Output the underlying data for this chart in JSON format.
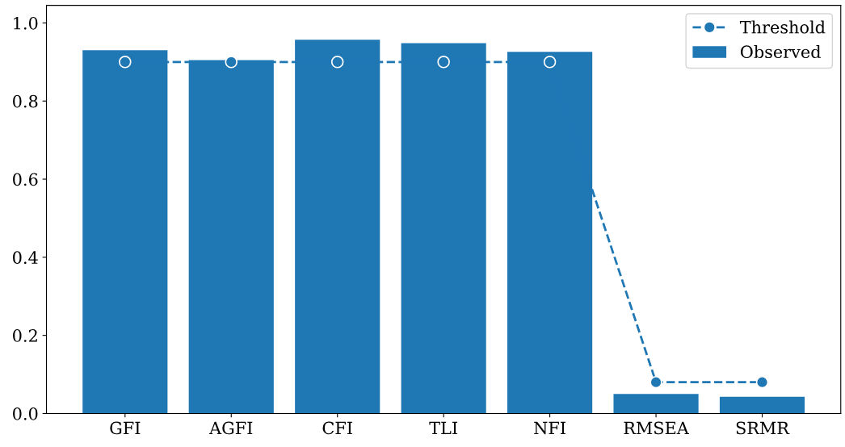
{
  "chart_data": {
    "type": "bar",
    "categories": [
      "GFI",
      "AGFI",
      "CFI",
      "TLI",
      "NFI",
      "RMSEA",
      "SRMR"
    ],
    "series": [
      {
        "name": "Observed",
        "color": "#1f77b4",
        "values": [
          0.93,
          0.905,
          0.957,
          0.948,
          0.926,
          0.05,
          0.043
        ]
      },
      {
        "name": "Threshold",
        "type": "line",
        "color": "#1f77b4",
        "marker": "circle",
        "line_style": "dashed",
        "values": [
          0.9,
          0.9,
          0.9,
          0.9,
          0.9,
          0.08,
          0.08
        ]
      }
    ],
    "ylim": [
      0,
      1.045
    ],
    "yticks": [
      {
        "value": 0,
        "label": "0.0"
      },
      {
        "value": 0.2,
        "label": "0.2"
      },
      {
        "value": 0.4,
        "label": "0.4"
      },
      {
        "value": 0.6,
        "label": "0.6"
      },
      {
        "value": 0.8,
        "label": "0.8"
      },
      {
        "value": 1,
        "label": "1.0"
      }
    ],
    "legend": "top right",
    "grid": false
  }
}
